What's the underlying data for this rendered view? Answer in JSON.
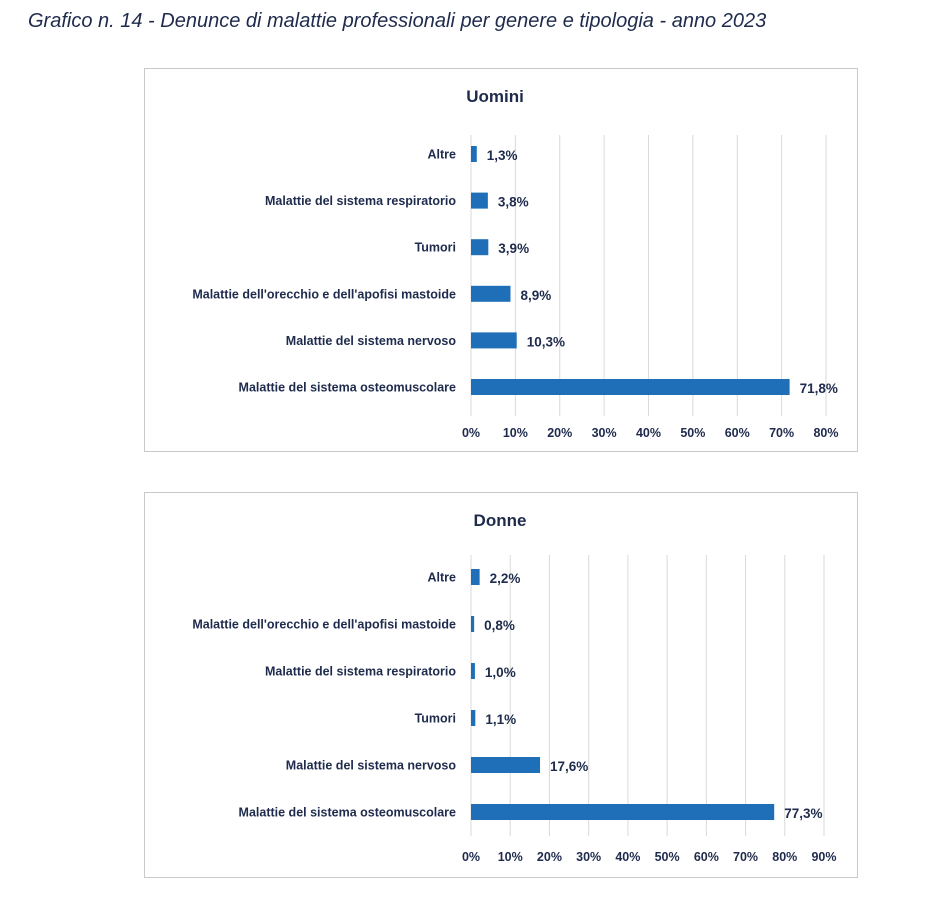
{
  "page_title": "Grafico n. 14 - Denunce di malattie professionali per genere e tipologia - anno 2023",
  "chart_data": [
    {
      "type": "bar",
      "orientation": "horizontal",
      "title": "Uomini",
      "categories": [
        "Altre",
        "Malattie del sistema respiratorio",
        "Tumori",
        "Malattie dell'orecchio e dell'apofisi mastoide",
        "Malattie del sistema nervoso",
        "Malattie del sistema osteomuscolare"
      ],
      "values": [
        1.3,
        3.8,
        3.9,
        8.9,
        10.3,
        71.8
      ],
      "value_labels": [
        "1,3%",
        "3,8%",
        "3,9%",
        "8,9%",
        "10,3%",
        "71,8%"
      ],
      "xlim": [
        0,
        80
      ],
      "x_ticks": [
        "0%",
        "10%",
        "20%",
        "30%",
        "40%",
        "50%",
        "60%",
        "70%",
        "80%"
      ],
      "grid": true,
      "legend": "none",
      "bar_color": "#1f6fb8"
    },
    {
      "type": "bar",
      "orientation": "horizontal",
      "title": "Donne",
      "categories": [
        "Altre",
        "Malattie dell'orecchio e dell'apofisi mastoide",
        "Malattie del sistema respiratorio",
        "Tumori",
        "Malattie del sistema nervoso",
        "Malattie del sistema osteomuscolare"
      ],
      "values": [
        2.2,
        0.8,
        1.0,
        1.1,
        17.6,
        77.3
      ],
      "value_labels": [
        "2,2%",
        "0,8%",
        "1,0%",
        "1,1%",
        "17,6%",
        "77,3%"
      ],
      "xlim": [
        0,
        90
      ],
      "x_ticks": [
        "0%",
        "10%",
        "20%",
        "30%",
        "40%",
        "50%",
        "60%",
        "70%",
        "80%",
        "90%"
      ],
      "grid": true,
      "legend": "none",
      "bar_color": "#1f6fb8"
    }
  ]
}
